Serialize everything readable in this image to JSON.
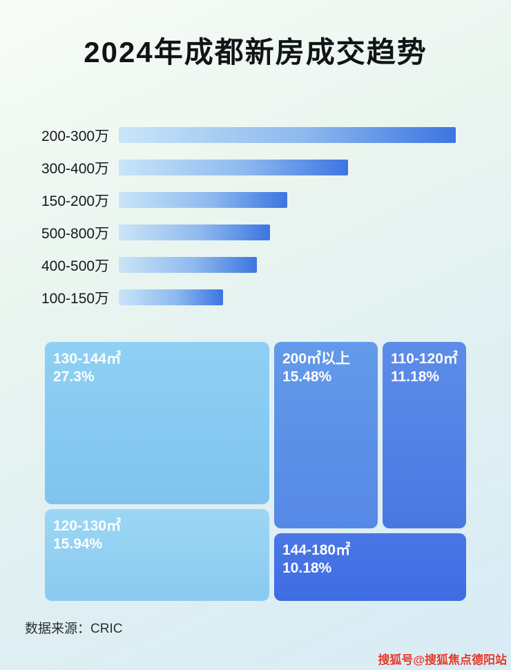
{
  "title": "2024年成都新房成交趋势",
  "footer": {
    "source_label": "数据来源：CRIC"
  },
  "watermark": "搜狐号@搜狐焦点德阳站",
  "colors": {
    "bar_gradient_start": "#c9e5f8",
    "bar_gradient_end": "#3d74e2",
    "treemap_light": "#8fd0f4",
    "treemap_dark": "#3f6ce2",
    "watermark_red": "#e03a2a"
  },
  "chart_data": [
    {
      "type": "bar",
      "orientation": "horizontal",
      "title": "2024年成都新房成交趋势 - 成交总价段",
      "categories": [
        "200-300万",
        "300-400万",
        "150-200万",
        "500-800万",
        "400-500万",
        "100-150万"
      ],
      "values": [
        100,
        68,
        50,
        45,
        41,
        31
      ],
      "value_note": "no numeric labels shown; values are relative bar lengths in % of longest bar",
      "xlabel": "",
      "ylabel": "",
      "grid": false,
      "legend": false
    },
    {
      "type": "treemap",
      "title": "2024年成都新房成交趋势 - 成交面积段占比",
      "items": [
        {
          "label": "130-144㎡",
          "value": 27.3,
          "value_text": "27.3%"
        },
        {
          "label": "120-130㎡",
          "value": 15.94,
          "value_text": "15.94%"
        },
        {
          "label": "200㎡以上",
          "value": 15.48,
          "value_text": "15.48%"
        },
        {
          "label": "110-120㎡",
          "value": 11.18,
          "value_text": "11.18%"
        },
        {
          "label": "144-180㎡",
          "value": 10.18,
          "value_text": "10.18%"
        }
      ]
    }
  ]
}
